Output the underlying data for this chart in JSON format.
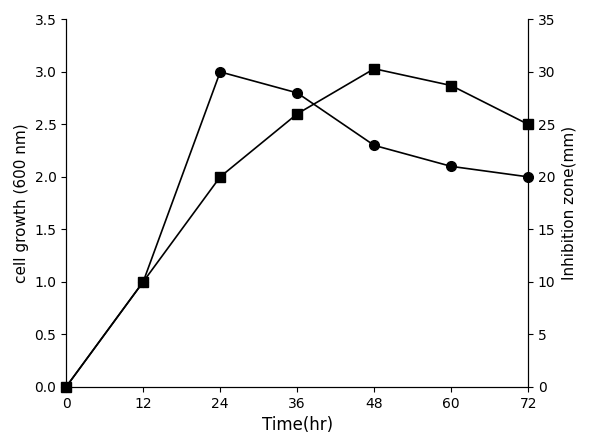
{
  "time": [
    0,
    12,
    24,
    36,
    48,
    60,
    72
  ],
  "cell_growth": [
    0.0,
    1.0,
    3.0,
    2.8,
    2.3,
    2.1,
    2.0
  ],
  "inhibition_zone_mm": [
    0.0,
    10.0,
    20.0,
    26.0,
    30.3,
    28.7,
    25.0
  ],
  "left_ylim": [
    0,
    3.5
  ],
  "right_ylim": [
    0,
    35
  ],
  "left_yticks": [
    0.0,
    0.5,
    1.0,
    1.5,
    2.0,
    2.5,
    3.0,
    3.5
  ],
  "right_yticks": [
    0,
    5,
    10,
    15,
    20,
    25,
    30,
    35
  ],
  "xticks": [
    0,
    12,
    24,
    36,
    48,
    60,
    72
  ],
  "xlabel": "Time(hr)",
  "ylabel_left": "cell growth (600 nm)",
  "ylabel_right": "Inhibition zone(mm)",
  "line_color": "black",
  "marker_circle": "o",
  "marker_square": "s",
  "markersize": 7,
  "linewidth": 1.2,
  "markerfacecolor": "black"
}
